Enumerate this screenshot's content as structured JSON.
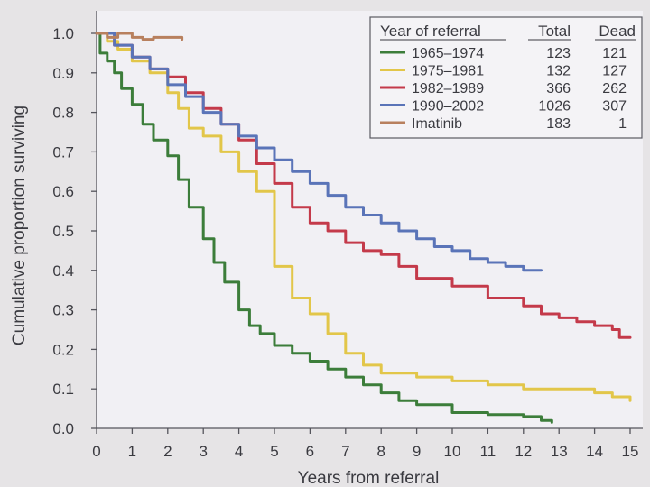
{
  "chart_data": {
    "type": "line",
    "title": "",
    "xlabel": "Years from referral",
    "ylabel": "Cumulative proportion surviving",
    "xlim": [
      0,
      15
    ],
    "ylim": [
      0,
      1.0
    ],
    "x_ticks": [
      0,
      1,
      2,
      3,
      4,
      5,
      6,
      7,
      8,
      9,
      10,
      11,
      12,
      13,
      14,
      15
    ],
    "y_ticks": [
      "0.0",
      "0.1",
      "0.2",
      "0.3",
      "0.4",
      "0.5",
      "0.6",
      "0.7",
      "0.8",
      "0.9",
      "1.0"
    ],
    "grid": false,
    "legend": {
      "placement": "top-right",
      "headers": [
        "Year of referral",
        "Total",
        "Dead"
      ],
      "rows": [
        {
          "label": "1965–1974",
          "total": "123",
          "dead": "121"
        },
        {
          "label": "1975–1981",
          "total": "132",
          "dead": "127"
        },
        {
          "label": "1982–1989",
          "total": "366",
          "dead": "262"
        },
        {
          "label": "1990–2002",
          "total": "1026",
          "dead": "307"
        },
        {
          "label": "Imatinib",
          "total": "183",
          "dead": "1"
        }
      ]
    },
    "series": [
      {
        "name": "1965–1974",
        "color": "#3c7d3a",
        "x": [
          0,
          0.1,
          0.3,
          0.5,
          0.7,
          1.0,
          1.3,
          1.6,
          2.0,
          2.3,
          2.6,
          3.0,
          3.3,
          3.6,
          4.0,
          4.3,
          4.6,
          5.0,
          5.5,
          6.0,
          6.5,
          7.0,
          7.5,
          8.0,
          8.5,
          9.0,
          10.0,
          11.0,
          12.0,
          12.5,
          12.8
        ],
        "y": [
          1.0,
          0.95,
          0.93,
          0.9,
          0.86,
          0.82,
          0.77,
          0.73,
          0.69,
          0.63,
          0.56,
          0.48,
          0.42,
          0.37,
          0.3,
          0.26,
          0.24,
          0.21,
          0.19,
          0.17,
          0.15,
          0.13,
          0.11,
          0.09,
          0.07,
          0.06,
          0.04,
          0.035,
          0.03,
          0.02,
          0.015
        ]
      },
      {
        "name": "1975–1981",
        "color": "#e2c649",
        "x": [
          0,
          0.3,
          0.6,
          1.0,
          1.5,
          2.0,
          2.3,
          2.6,
          3.0,
          3.5,
          4.0,
          4.5,
          5.0,
          5.5,
          6.0,
          6.5,
          7.0,
          7.5,
          8.0,
          9.0,
          10.0,
          11.0,
          12.0,
          13.0,
          14.0,
          14.5,
          15.0
        ],
        "y": [
          1.0,
          0.98,
          0.96,
          0.93,
          0.9,
          0.85,
          0.81,
          0.76,
          0.74,
          0.7,
          0.65,
          0.6,
          0.41,
          0.33,
          0.29,
          0.24,
          0.19,
          0.16,
          0.14,
          0.13,
          0.12,
          0.11,
          0.1,
          0.1,
          0.09,
          0.08,
          0.07
        ]
      },
      {
        "name": "1982–1989",
        "color": "#c43a4a",
        "x": [
          0,
          0.5,
          1.0,
          1.5,
          2.0,
          2.5,
          3.0,
          3.5,
          4.0,
          4.5,
          5.0,
          5.5,
          6.0,
          6.5,
          7.0,
          7.5,
          8.0,
          8.5,
          9.0,
          10.0,
          11.0,
          12.0,
          12.5,
          13.0,
          13.5,
          14.0,
          14.5,
          14.7,
          15.0
        ],
        "y": [
          1.0,
          0.97,
          0.94,
          0.91,
          0.89,
          0.85,
          0.81,
          0.77,
          0.73,
          0.67,
          0.62,
          0.56,
          0.52,
          0.5,
          0.47,
          0.45,
          0.44,
          0.41,
          0.38,
          0.36,
          0.33,
          0.31,
          0.29,
          0.28,
          0.27,
          0.26,
          0.25,
          0.23,
          0.23
        ]
      },
      {
        "name": "1990–2002",
        "color": "#5a74b8",
        "x": [
          0,
          0.5,
          1.0,
          1.5,
          2.0,
          2.5,
          3.0,
          3.5,
          4.0,
          4.5,
          5.0,
          5.5,
          6.0,
          6.5,
          7.0,
          7.5,
          8.0,
          8.5,
          9.0,
          9.5,
          10.0,
          10.5,
          11.0,
          11.5,
          12.0,
          12.5
        ],
        "y": [
          1.0,
          0.97,
          0.94,
          0.91,
          0.87,
          0.84,
          0.8,
          0.77,
          0.74,
          0.71,
          0.68,
          0.65,
          0.62,
          0.59,
          0.56,
          0.54,
          0.52,
          0.5,
          0.48,
          0.46,
          0.45,
          0.43,
          0.42,
          0.41,
          0.4,
          0.4
        ]
      },
      {
        "name": "Imatinib",
        "color": "#b8805e",
        "x": [
          0,
          0.3,
          0.6,
          1.0,
          1.3,
          1.6,
          2.0,
          2.4
        ],
        "y": [
          1.0,
          0.99,
          1.0,
          0.99,
          0.985,
          0.99,
          0.99,
          0.985
        ]
      }
    ]
  }
}
